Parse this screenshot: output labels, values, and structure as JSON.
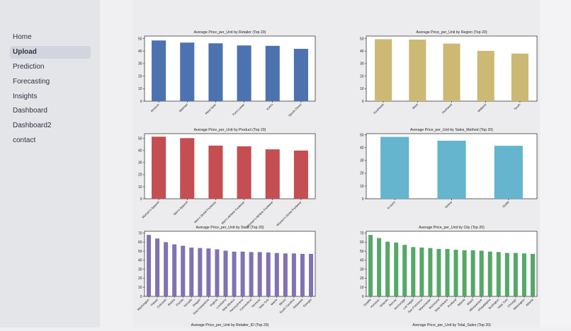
{
  "sidebar": {
    "items": [
      {
        "label": "Home",
        "active": false
      },
      {
        "label": "Upload",
        "active": true
      },
      {
        "label": "Prediction",
        "active": false
      },
      {
        "label": "Forecasting",
        "active": false
      },
      {
        "label": "Insights",
        "active": false
      },
      {
        "label": "Dashboard",
        "active": false
      },
      {
        "label": "Dashboard2",
        "active": false
      },
      {
        "label": "contact",
        "active": false
      }
    ]
  },
  "chart_data": [
    {
      "type": "bar",
      "title": "Average Price_per_Unit by Retailer (Top 20)",
      "color": "#4c72b0",
      "categories": [
        "Amazon",
        "Walmart",
        "West Gear",
        "Foot Locker",
        "Kohl's",
        "Sports Direct"
      ],
      "values": [
        48.5,
        46.8,
        46.2,
        44.5,
        44.2,
        41.8
      ],
      "ylim": [
        0,
        52
      ],
      "yticks": [
        0,
        10,
        20,
        30,
        40,
        50
      ]
    },
    {
      "type": "bar",
      "title": "Average Price_per_Unit by Region (Top 20)",
      "color": "#ccb974",
      "categories": [
        "Southeast",
        "West",
        "Northeast",
        "Midwest",
        "South"
      ],
      "values": [
        49.5,
        49.2,
        46,
        40.2,
        38
      ],
      "ylim": [
        0,
        52
      ],
      "yticks": [
        0,
        10,
        20,
        30,
        40,
        50
      ]
    },
    {
      "type": "bar",
      "title": "Average Price_per_Unit by Product (Top 20)",
      "color": "#c44e52",
      "categories": [
        "Women's Apparel",
        "Men's Apparel",
        "Men's Street Footwear",
        "Men's Athletic Footwear",
        "Women's Athletic Footwear",
        "Women's Street Footwear"
      ],
      "values": [
        51.5,
        50.3,
        44.1,
        43.5,
        41,
        40
      ],
      "ylim": [
        0,
        54
      ],
      "yticks": [
        0,
        10,
        20,
        30,
        40,
        50
      ]
    },
    {
      "type": "bar",
      "title": "Average Price_per_Unit by Sales_Method (Top 20)",
      "color": "#64b5cd",
      "categories": [
        "In-store",
        "Online",
        "Outlet"
      ],
      "values": [
        48.5,
        45.5,
        41.5
      ],
      "ylim": [
        0,
        51
      ],
      "yticks": [
        0,
        10,
        20,
        30,
        40,
        50
      ]
    },
    {
      "type": "bar",
      "title": "Average Price_per_Unit by State (Top 20)",
      "color": "#8172b2",
      "categories": [
        "Washington",
        "Hawaii",
        "Colorado",
        "Alaska",
        "Florida",
        "Nevada",
        "Oregon",
        "New Hampshire",
        "Virginia",
        "Louisiana",
        "New Mexico",
        "Pennsylvania",
        "Connecticut",
        "Vermont",
        "New York",
        "Maine",
        "Illinois",
        "South Carolina",
        "Delaware",
        "Georgia"
      ],
      "values": [
        68,
        64,
        60,
        57.5,
        56,
        54,
        53.5,
        53,
        52,
        50.5,
        49.5,
        49.5,
        49,
        49,
        48.5,
        48,
        47.5,
        47.5,
        47,
        47
      ],
      "ylim": [
        0,
        72
      ],
      "yticks": [
        0,
        10,
        20,
        30,
        40,
        50,
        60,
        70
      ]
    },
    {
      "type": "bar",
      "title": "Average Price_per_Unit by City (Top 20)",
      "color": "#55a868",
      "categories": [
        "Seattle",
        "Honolulu",
        "Orlando",
        "Denver",
        "Anchorage",
        "Las Vegas",
        "San Francisco",
        "Manchester",
        "Richmond",
        "New Orleans",
        "Portland",
        "Atlanta",
        "Miami",
        "Albuquerque",
        "Philadelphia",
        "Burlington",
        "New York",
        "Chicago",
        "Wilmington",
        "Atlanta"
      ],
      "values": [
        68,
        64.5,
        60.5,
        59.5,
        57,
        54.5,
        54,
        53.5,
        52.5,
        52.5,
        51.5,
        51,
        51,
        50.5,
        49.5,
        49,
        48,
        48,
        47.5,
        47
      ],
      "ylim": [
        0,
        72
      ],
      "yticks": [
        0,
        10,
        20,
        30,
        40,
        50,
        60,
        70
      ]
    },
    {
      "type": "bar",
      "title": "Average Price_per_Unit by Retailer_ID (Top 20)",
      "color": "#4c72b0",
      "categories": [],
      "values": []
    },
    {
      "type": "bar",
      "title": "Average Price_per_Unit by Total_Sales (Top 20)",
      "color": "#ccb974",
      "categories": [],
      "values": []
    }
  ]
}
